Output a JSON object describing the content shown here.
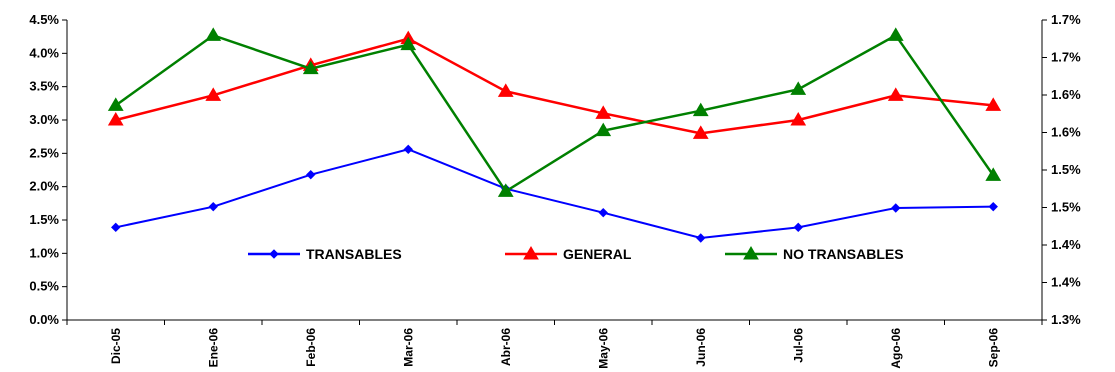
{
  "chart_data": {
    "type": "line",
    "categories": [
      "Dic-05",
      "Ene-06",
      "Feb-06",
      "Mar-06",
      "Abr-06",
      "May-06",
      "Jun-06",
      "Jul-06",
      "Ago-06",
      "Sep-06"
    ],
    "left_axis": {
      "ylim": [
        0.0,
        4.5
      ],
      "ticks": [
        "0.0%",
        "0.5%",
        "1.0%",
        "1.5%",
        "2.0%",
        "2.5%",
        "3.0%",
        "3.5%",
        "4.0%",
        "4.5%"
      ]
    },
    "right_axis": {
      "ylim": [
        1.3,
        1.75
      ],
      "ticks": [
        "1.3%",
        "1.4%",
        "1.4%",
        "1.5%",
        "1.5%",
        "1.6%",
        "1.6%",
        "1.7%",
        "1.7%"
      ]
    },
    "series": [
      {
        "name": "TRANSABLES",
        "axis": "left",
        "color": "#0000ff",
        "marker": "diamond",
        "values": [
          1.39,
          1.7,
          2.18,
          2.56,
          1.97,
          1.61,
          1.23,
          1.39,
          1.68,
          1.7
        ]
      },
      {
        "name": "GENERAL",
        "axis": "left",
        "color": "#ff0000",
        "marker": "triangle",
        "values": [
          3.0,
          3.37,
          3.82,
          4.22,
          3.43,
          3.1,
          2.8,
          3.0,
          3.37,
          3.22
        ]
      },
      {
        "name": "NO TRANSABLES",
        "axis": "right",
        "color": "#008000",
        "marker": "triangle",
        "values": [
          1.622,
          1.727,
          1.677,
          1.713,
          1.493,
          1.584,
          1.614,
          1.646,
          1.727,
          1.517
        ]
      }
    ],
    "legend_position": "bottom-center-inside",
    "grid": false
  }
}
